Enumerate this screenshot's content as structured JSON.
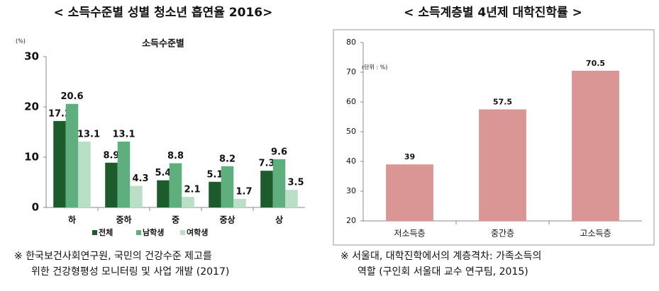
{
  "chart_data": [
    {
      "type": "bar",
      "title": "< 소득수준별 성별 청소년 흡연율 2016>",
      "subtitle": "소득수준별",
      "y_unit": "(%)",
      "categories": [
        "하",
        "중하",
        "중",
        "중상",
        "상"
      ],
      "series": [
        {
          "name": "전체",
          "color": "#1d5a2c",
          "values": [
            17.2,
            8.9,
            5.4,
            5.1,
            7.3
          ]
        },
        {
          "name": "남학생",
          "color": "#5fae7e",
          "values": [
            20.6,
            13.1,
            8.8,
            8.2,
            9.6
          ]
        },
        {
          "name": "여학생",
          "color": "#b9dfc6",
          "values": [
            13.1,
            4.3,
            2.1,
            1.7,
            3.5
          ]
        }
      ],
      "ylim": [
        0,
        30
      ],
      "yticks": [
        0,
        10,
        20,
        30
      ],
      "grid": false,
      "legend": "bottom",
      "note": [
        "※  한국보건사회연구원, 국민의 건강수준 제고를",
        "위한 건강형평성 모니터링 및 사업 개발 (2017)"
      ]
    },
    {
      "type": "bar",
      "title": "< 소득계층별 4년제 대학진학률 >",
      "y_unit": "(단위 : %)",
      "categories": [
        "저소득층",
        "중간층",
        "고소득층"
      ],
      "values": [
        39,
        57.5,
        70.5
      ],
      "color": "#d99694",
      "ylim": [
        20,
        80
      ],
      "yticks": [
        20,
        30,
        40,
        50,
        60,
        70,
        80
      ],
      "grid": false,
      "border": true,
      "note": [
        "※  서울대, 대학진학에서의 계층격차: 가족소득의",
        "역할 (구인회 서울대 교수 연구팀, 2015)"
      ]
    }
  ]
}
